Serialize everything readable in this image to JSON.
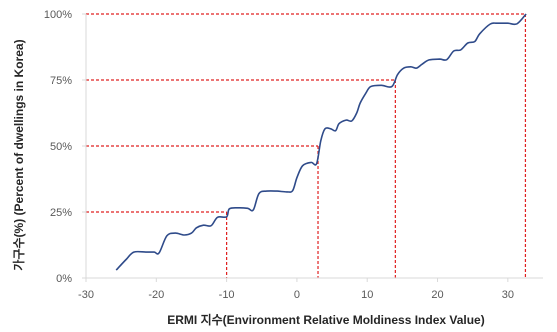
{
  "chart_data": {
    "type": "line",
    "xlabel": "ERMI 지수(Environment Relative Moldiness Index Value)",
    "ylabel": "가구수(%) (Percent of dwellings in Korea)",
    "xlim": [
      -30,
      35
    ],
    "ylim": [
      0,
      100
    ],
    "x_ticks": [
      "-30",
      "-20",
      "-10",
      "0",
      "10",
      "20",
      "30"
    ],
    "y_ticks": [
      "0%",
      "25%",
      "50%",
      "75%",
      "100%"
    ],
    "grid": false,
    "line_color": "#2F4B8A",
    "reference_color": "#E02020",
    "reference_lines": [
      {
        "x": -10,
        "y": 25
      },
      {
        "x": 3,
        "y": 50
      },
      {
        "x": 14,
        "y": 75
      },
      {
        "x": 32.5,
        "y": 100
      }
    ],
    "series": [
      {
        "values": [
          [
            -25.7,
            3
          ],
          [
            -24.3,
            7
          ],
          [
            -23.2,
            9.8
          ],
          [
            -21.5,
            9.8
          ],
          [
            -20.3,
            9.8
          ],
          [
            -19.6,
            9.5
          ],
          [
            -18.5,
            16
          ],
          [
            -17.3,
            17
          ],
          [
            -16,
            16.3
          ],
          [
            -15,
            17
          ],
          [
            -14.3,
            19
          ],
          [
            -13.3,
            20
          ],
          [
            -12.2,
            19.8
          ],
          [
            -11.3,
            23
          ],
          [
            -10,
            23.2
          ],
          [
            -9.6,
            26.2
          ],
          [
            -8.3,
            26.6
          ],
          [
            -7,
            26.4
          ],
          [
            -6.2,
            25.8
          ],
          [
            -5.4,
            32
          ],
          [
            -4.3,
            32.9
          ],
          [
            -2.8,
            32.9
          ],
          [
            -1.4,
            32.6
          ],
          [
            -0.6,
            33.1
          ],
          [
            0,
            38
          ],
          [
            0.8,
            42.5
          ],
          [
            2,
            43.8
          ],
          [
            2.8,
            43.3
          ],
          [
            3.4,
            52
          ],
          [
            4,
            56.5
          ],
          [
            4.8,
            56.5
          ],
          [
            5.5,
            55.8
          ],
          [
            6,
            58.5
          ],
          [
            7,
            59.8
          ],
          [
            7.8,
            59.5
          ],
          [
            8.5,
            62.5
          ],
          [
            9,
            66.3
          ],
          [
            9.8,
            70
          ],
          [
            10.5,
            72.5
          ],
          [
            12,
            73
          ],
          [
            13.5,
            72.5
          ],
          [
            14.3,
            77
          ],
          [
            15.2,
            79.5
          ],
          [
            16.2,
            80
          ],
          [
            17,
            79.5
          ],
          [
            17.8,
            81
          ],
          [
            18.8,
            82.6
          ],
          [
            20.3,
            82.9
          ],
          [
            21.3,
            82.7
          ],
          [
            22.3,
            86
          ],
          [
            23.3,
            86.4
          ],
          [
            24.3,
            89
          ],
          [
            25.3,
            89.6
          ],
          [
            26,
            92.5
          ],
          [
            27.5,
            96.2
          ],
          [
            28.5,
            96.5
          ],
          [
            30,
            96.5
          ],
          [
            31.3,
            96.3
          ],
          [
            32.6,
            100
          ]
        ]
      }
    ]
  }
}
